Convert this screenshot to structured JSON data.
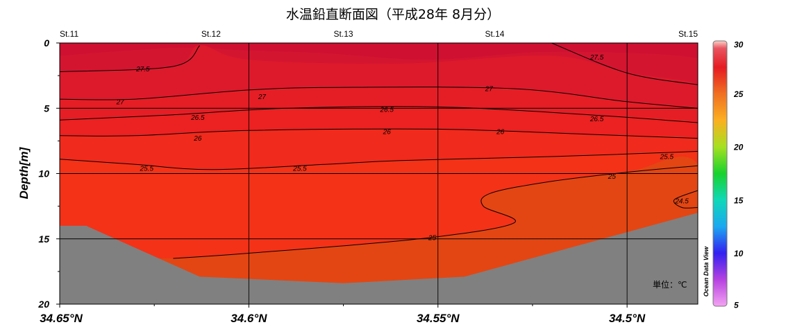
{
  "title": "水温鉛直断面図（平成28年 8月分）",
  "chart_data": {
    "type": "heatmap",
    "title": "水温鉛直断面図（平成28年 8月分）",
    "xlabel": "",
    "ylabel": "Depth[m]",
    "xlim": [
      34.65,
      34.4813
    ],
    "ylim": [
      20,
      0
    ],
    "x_reversed": true,
    "x_ticks": [
      34.65,
      34.6,
      34.55,
      34.5
    ],
    "x_tick_labels": [
      "34.65°N",
      "34.6°N",
      "34.55°N",
      "34.5°N"
    ],
    "y_ticks": [
      0,
      5,
      10,
      15,
      20
    ],
    "y_tick_labels": [
      "0",
      "5",
      "10",
      "15",
      "20"
    ],
    "grid": true,
    "stations": [
      {
        "name": "St.11",
        "lat": 34.65
      },
      {
        "name": "St.12",
        "lat": 34.61
      },
      {
        "name": "St.13",
        "lat": 34.575
      },
      {
        "name": "St.14",
        "lat": 34.535
      },
      {
        "name": "St.15",
        "lat": 34.4813
      }
    ],
    "seafloor_depth_m": [
      {
        "lat": 34.65,
        "depth": 14.0
      },
      {
        "lat": 34.643,
        "depth": 14.0
      },
      {
        "lat": 34.613,
        "depth": 17.9
      },
      {
        "lat": 34.575,
        "depth": 18.4
      },
      {
        "lat": 34.543,
        "depth": 17.9
      },
      {
        "lat": 34.4813,
        "depth": 13.0
      }
    ],
    "temperature_bands": [
      {
        "range": "28-",
        "color": "#cf1030",
        "points": [
          [
            34.65,
            0
          ],
          [
            34.4813,
            0
          ],
          [
            34.4813,
            1.2
          ],
          [
            34.52,
            0.7
          ],
          [
            34.552,
            1.3
          ],
          [
            34.58,
            0.8
          ],
          [
            34.6,
            0.6
          ],
          [
            34.62,
            0.4
          ],
          [
            34.65,
            1.0
          ]
        ]
      },
      {
        "range": "27.5-28",
        "color": "#d41530",
        "points": [
          [
            34.65,
            1.0
          ],
          [
            34.62,
            0.4
          ],
          [
            34.6,
            0.6
          ],
          [
            34.58,
            0.8
          ],
          [
            34.552,
            1.3
          ],
          [
            34.52,
            0.7
          ],
          [
            34.4813,
            1.2
          ],
          [
            34.4813,
            3.2
          ],
          [
            34.5,
            2.3
          ],
          [
            34.52,
            1.0
          ],
          [
            34.56,
            1.6
          ],
          [
            34.6,
            1.3
          ],
          [
            34.613,
            0.2
          ],
          [
            34.62,
            1.8
          ],
          [
            34.65,
            2.2
          ]
        ]
      },
      {
        "range": "27-27.5",
        "color": "#dc1a2c",
        "points": [
          [
            34.65,
            2.2
          ],
          [
            34.62,
            1.8
          ],
          [
            34.613,
            0.2
          ],
          [
            34.6,
            1.3
          ],
          [
            34.56,
            1.6
          ],
          [
            34.52,
            1.0
          ],
          [
            34.5,
            2.3
          ],
          [
            34.4813,
            3.2
          ],
          [
            34.4813,
            5.0
          ],
          [
            34.5,
            4.5
          ],
          [
            34.53,
            3.5
          ],
          [
            34.575,
            3.4
          ],
          [
            34.6,
            3.6
          ],
          [
            34.63,
            4.3
          ],
          [
            34.65,
            4.3
          ]
        ]
      },
      {
        "range": "26.5-27",
        "color": "#e51e26",
        "points": [
          [
            34.65,
            4.3
          ],
          [
            34.63,
            4.3
          ],
          [
            34.6,
            3.6
          ],
          [
            34.575,
            3.4
          ],
          [
            34.53,
            3.5
          ],
          [
            34.5,
            4.5
          ],
          [
            34.4813,
            5.0
          ],
          [
            34.4813,
            6.1
          ],
          [
            34.51,
            5.5
          ],
          [
            34.55,
            4.9
          ],
          [
            34.59,
            5.0
          ],
          [
            34.62,
            5.5
          ],
          [
            34.65,
            5.9
          ]
        ]
      },
      {
        "range": "26-26.5",
        "color": "#ec2121",
        "points": [
          [
            34.65,
            5.9
          ],
          [
            34.62,
            5.5
          ],
          [
            34.59,
            5.0
          ],
          [
            34.55,
            4.9
          ],
          [
            34.51,
            5.5
          ],
          [
            34.4813,
            6.1
          ],
          [
            34.4813,
            7.3
          ],
          [
            34.51,
            7.0
          ],
          [
            34.55,
            6.6
          ],
          [
            34.6,
            6.7
          ],
          [
            34.63,
            7.1
          ],
          [
            34.65,
            7.1
          ]
        ]
      },
      {
        "range": "25.5-26",
        "color": "#f02a1c",
        "points": [
          [
            34.65,
            7.1
          ],
          [
            34.63,
            7.1
          ],
          [
            34.6,
            6.7
          ],
          [
            34.55,
            6.6
          ],
          [
            34.51,
            7.0
          ],
          [
            34.4813,
            7.3
          ],
          [
            34.4813,
            8.3
          ],
          [
            34.52,
            8.7
          ],
          [
            34.56,
            9.0
          ],
          [
            34.58,
            9.3
          ],
          [
            34.61,
            9.7
          ],
          [
            34.63,
            9.3
          ],
          [
            34.65,
            8.9
          ]
        ]
      },
      {
        "range": "25-25.5",
        "color": "#f33218",
        "points": [
          [
            34.65,
            8.9
          ],
          [
            34.63,
            9.3
          ],
          [
            34.61,
            9.7
          ],
          [
            34.58,
            9.3
          ],
          [
            34.56,
            9.0
          ],
          [
            34.52,
            8.7
          ],
          [
            34.4813,
            8.3
          ],
          [
            34.4813,
            9.4
          ],
          [
            34.5,
            9.9
          ],
          [
            34.52,
            10.6
          ],
          [
            34.536,
            11.5
          ],
          [
            34.538,
            12.5
          ],
          [
            34.53,
            13.8
          ],
          [
            34.555,
            15.0
          ],
          [
            34.6,
            16.1
          ],
          [
            34.62,
            16.5
          ],
          [
            34.65,
            16.5
          ],
          [
            34.65,
            14.0
          ]
        ]
      },
      {
        "range": "24.5-25",
        "color": "#e34613",
        "points": [
          [
            34.65,
            16.5
          ],
          [
            34.62,
            16.5
          ],
          [
            34.6,
            16.1
          ],
          [
            34.555,
            15.0
          ],
          [
            34.53,
            13.8
          ],
          [
            34.538,
            12.5
          ],
          [
            34.536,
            11.5
          ],
          [
            34.52,
            10.6
          ],
          [
            34.5,
            9.9
          ],
          [
            34.4813,
            9.4
          ],
          [
            34.4813,
            20
          ],
          [
            34.65,
            20
          ]
        ]
      }
    ],
    "contours": [
      {
        "level": 27.5,
        "label": "27.5",
        "label_pos": [
          34.628,
          2.0
        ],
        "points": [
          [
            34.65,
            2.2
          ],
          [
            34.62,
            1.8
          ],
          [
            34.613,
            0.2
          ]
        ]
      },
      {
        "level": 27.5,
        "label": "27.5",
        "label_pos": [
          34.508,
          1.1
        ],
        "points": [
          [
            34.52,
            0.0
          ],
          [
            34.5,
            2.3
          ],
          [
            34.4813,
            3.2
          ]
        ]
      },
      {
        "level": 27,
        "label": "27",
        "label_pos": [
          34.634,
          4.5
        ],
        "points": [
          [
            34.65,
            4.3
          ],
          [
            34.63,
            4.3
          ],
          [
            34.6,
            3.6
          ],
          [
            34.575,
            3.4
          ],
          [
            34.53,
            3.5
          ],
          [
            34.5,
            4.5
          ],
          [
            34.4813,
            5.0
          ]
        ]
      },
      {
        "level": 27,
        "label": "27",
        "label_pos": [
          34.5965,
          4.1
        ],
        "points": []
      },
      {
        "level": 27,
        "label": "27",
        "label_pos": [
          34.5365,
          3.5
        ],
        "points": []
      },
      {
        "level": 26.5,
        "label": "26.5",
        "label_pos": [
          34.6135,
          5.7
        ],
        "points": [
          [
            34.65,
            5.9
          ],
          [
            34.62,
            5.5
          ],
          [
            34.59,
            5.0
          ],
          [
            34.55,
            4.9
          ],
          [
            34.51,
            5.5
          ],
          [
            34.4813,
            6.1
          ]
        ]
      },
      {
        "level": 26.5,
        "label": "26.5",
        "label_pos": [
          34.5635,
          5.1
        ],
        "points": []
      },
      {
        "level": 26.5,
        "label": "26.5",
        "label_pos": [
          34.508,
          5.8
        ],
        "points": []
      },
      {
        "level": 26,
        "label": "26",
        "label_pos": [
          34.6135,
          7.3
        ],
        "points": [
          [
            34.65,
            7.1
          ],
          [
            34.63,
            7.1
          ],
          [
            34.6,
            6.7
          ],
          [
            34.55,
            6.6
          ],
          [
            34.51,
            7.0
          ],
          [
            34.4813,
            7.3
          ]
        ]
      },
      {
        "level": 26,
        "label": "26",
        "label_pos": [
          34.5635,
          6.8
        ],
        "points": []
      },
      {
        "level": 26,
        "label": "26",
        "label_pos": [
          34.5335,
          6.8
        ],
        "points": []
      },
      {
        "level": 25.5,
        "label": "25.5",
        "label_pos": [
          34.627,
          9.6
        ],
        "points": [
          [
            34.65,
            8.9
          ],
          [
            34.63,
            9.3
          ],
          [
            34.61,
            9.7
          ],
          [
            34.58,
            9.3
          ],
          [
            34.56,
            9.0
          ],
          [
            34.52,
            8.7
          ],
          [
            34.4813,
            8.3
          ]
        ]
      },
      {
        "level": 25.5,
        "label": "25.5",
        "label_pos": [
          34.5865,
          9.6
        ],
        "points": []
      },
      {
        "level": 25.5,
        "label": "25.5",
        "label_pos": [
          34.4895,
          8.7
        ],
        "points": []
      },
      {
        "level": 25,
        "label": "25",
        "label_pos": [
          34.504,
          10.2
        ],
        "points": [
          [
            34.4813,
            9.4
          ],
          [
            34.5,
            9.9
          ],
          [
            34.52,
            10.6
          ],
          [
            34.536,
            11.5
          ],
          [
            34.538,
            12.5
          ],
          [
            34.53,
            13.8
          ],
          [
            34.555,
            15.0
          ],
          [
            34.6,
            16.1
          ],
          [
            34.62,
            16.5
          ]
        ]
      },
      {
        "level": 25,
        "label": "25",
        "label_pos": [
          34.5515,
          14.9
        ],
        "points": []
      },
      {
        "level": 24.5,
        "label": "24.5",
        "label_pos": [
          34.4855,
          12.1
        ],
        "points": [
          [
            34.4813,
            11.3
          ],
          [
            34.4875,
            12.0
          ],
          [
            34.4855,
            12.6
          ],
          [
            34.4813,
            12.6
          ]
        ]
      }
    ],
    "colorbar": {
      "min": 5,
      "max": 30,
      "ticks": [
        5,
        10,
        15,
        20,
        25,
        30
      ],
      "tick_labels": [
        "5",
        "10",
        "15",
        "20",
        "25",
        "30"
      ],
      "stops": [
        {
          "value": 5,
          "color": "#f4a3f2"
        },
        {
          "value": 7.5,
          "color": "#b642e0"
        },
        {
          "value": 10,
          "color": "#3320f0"
        },
        {
          "value": 12.5,
          "color": "#1ba8f0"
        },
        {
          "value": 15,
          "color": "#0fd8b8"
        },
        {
          "value": 17.5,
          "color": "#18d22e"
        },
        {
          "value": 20,
          "color": "#a5e020"
        },
        {
          "value": 22.5,
          "color": "#fbb020"
        },
        {
          "value": 25,
          "color": "#f07020"
        },
        {
          "value": 27.5,
          "color": "#e51b22"
        },
        {
          "value": 29.3,
          "color": "#e85560"
        },
        {
          "value": 30,
          "color": "#fbd2c8"
        }
      ]
    },
    "unit_label": "単位：℃",
    "watermark": "Ocean Data View"
  }
}
